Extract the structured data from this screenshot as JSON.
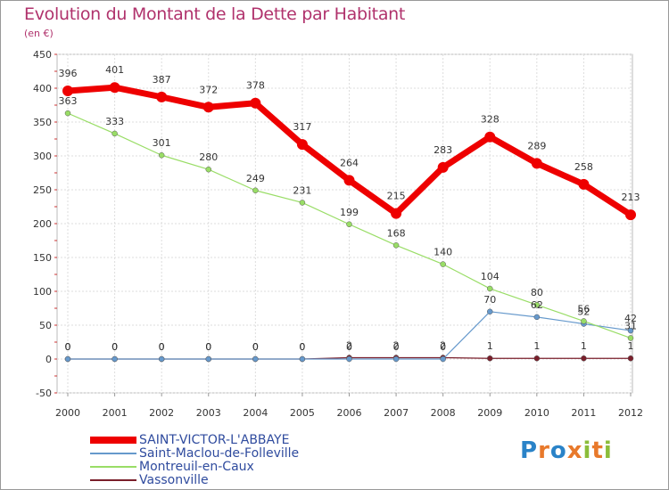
{
  "title": "Evolution du Montant de la Dette par Habitant",
  "subtitle": "(en €)",
  "logo": {
    "text": "Proxiti",
    "letters": [
      "P",
      "r",
      "o",
      "x",
      "i",
      "t",
      "i"
    ],
    "colors": [
      "#2a83c8",
      "#e8792b",
      "#2a83c8",
      "#e8792b",
      "#8bbd3a",
      "#e8792b",
      "#8bbd3a"
    ]
  },
  "chart_data": {
    "type": "line",
    "x": [
      2000,
      2001,
      2002,
      2003,
      2004,
      2005,
      2006,
      2007,
      2008,
      2009,
      2010,
      2011,
      2012
    ],
    "ylim": [
      -50,
      450
    ],
    "yticks": [
      -50,
      0,
      50,
      100,
      150,
      200,
      250,
      300,
      350,
      400,
      450
    ],
    "grid": true,
    "legend_position": "bottom-left",
    "series": [
      {
        "name": "SAINT-VICTOR-L'ABBAYE",
        "color": "#ee0000",
        "width": 7,
        "values": [
          396,
          401,
          387,
          372,
          378,
          317,
          264,
          215,
          283,
          328,
          289,
          258,
          213
        ]
      },
      {
        "name": "Saint-Maclou-de-Folleville",
        "color": "#6699cc",
        "width": 1.2,
        "values": [
          0,
          0,
          0,
          0,
          0,
          0,
          0,
          0,
          0,
          70,
          62,
          52,
          42
        ]
      },
      {
        "name": "Montreuil-en-Caux",
        "color": "#99dd66",
        "width": 1.2,
        "values": [
          363,
          333,
          301,
          280,
          249,
          231,
          199,
          168,
          140,
          104,
          80,
          56,
          31
        ]
      },
      {
        "name": "Vassonville",
        "color": "#7a1f2b",
        "width": 1.2,
        "values": [
          0,
          0,
          0,
          0,
          0,
          0,
          2,
          2,
          2,
          1,
          1,
          1,
          1
        ]
      }
    ]
  }
}
